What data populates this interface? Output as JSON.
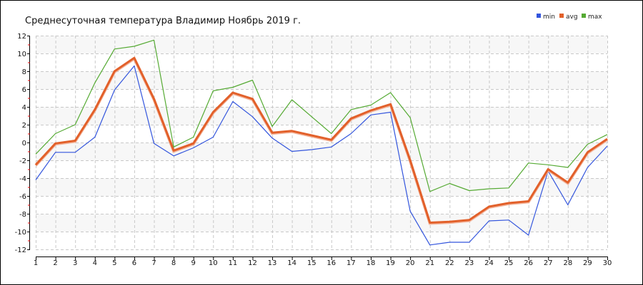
{
  "chart_data": {
    "type": "line",
    "title": "Среднесуточная температура Владимир  Ноябрь 2019 г.",
    "xlabel": "",
    "ylabel": "",
    "x": [
      1,
      2,
      3,
      4,
      5,
      6,
      7,
      8,
      9,
      10,
      11,
      12,
      13,
      14,
      15,
      16,
      17,
      18,
      19,
      20,
      21,
      22,
      23,
      24,
      25,
      26,
      27,
      28,
      29,
      30
    ],
    "ylim": [
      -12,
      12
    ],
    "yticks": [
      -12,
      -10,
      -8,
      -6,
      -4,
      -2,
      0,
      2,
      4,
      6,
      8,
      10,
      12
    ],
    "grid": true,
    "legend_position": "top-right",
    "series": [
      {
        "name": "min",
        "color": "#3355dd",
        "values": [
          -4.2,
          -1.1,
          -1.1,
          0.6,
          5.9,
          8.6,
          -0.1,
          -1.5,
          -0.6,
          0.6,
          4.6,
          2.9,
          0.5,
          -1.0,
          -0.8,
          -0.5,
          1.0,
          3.1,
          3.4,
          -7.7,
          -11.5,
          -11.2,
          -11.2,
          -8.8,
          -8.7,
          -10.4,
          -3.2,
          -7.0,
          -2.8,
          -0.4
        ]
      },
      {
        "name": "avg",
        "color": "#e2602a",
        "values": [
          -2.5,
          -0.1,
          0.2,
          3.7,
          8.0,
          9.5,
          4.9,
          -0.9,
          -0.1,
          3.4,
          5.6,
          4.9,
          1.1,
          1.3,
          0.8,
          0.3,
          2.7,
          3.6,
          4.3,
          -2.0,
          -9.0,
          -8.9,
          -8.7,
          -7.2,
          -6.8,
          -6.6,
          -3.0,
          -4.5,
          -1.1,
          0.4
        ]
      },
      {
        "name": "max",
        "color": "#55aa33",
        "values": [
          -1.3,
          1.0,
          2.0,
          6.7,
          10.5,
          10.8,
          11.5,
          -0.5,
          0.6,
          5.8,
          6.2,
          7.0,
          1.8,
          4.8,
          2.9,
          1.0,
          3.7,
          4.2,
          5.6,
          2.8,
          -5.5,
          -4.6,
          -5.4,
          -5.2,
          -5.1,
          -2.3,
          -2.5,
          -2.8,
          -0.2,
          0.9
        ]
      }
    ]
  }
}
